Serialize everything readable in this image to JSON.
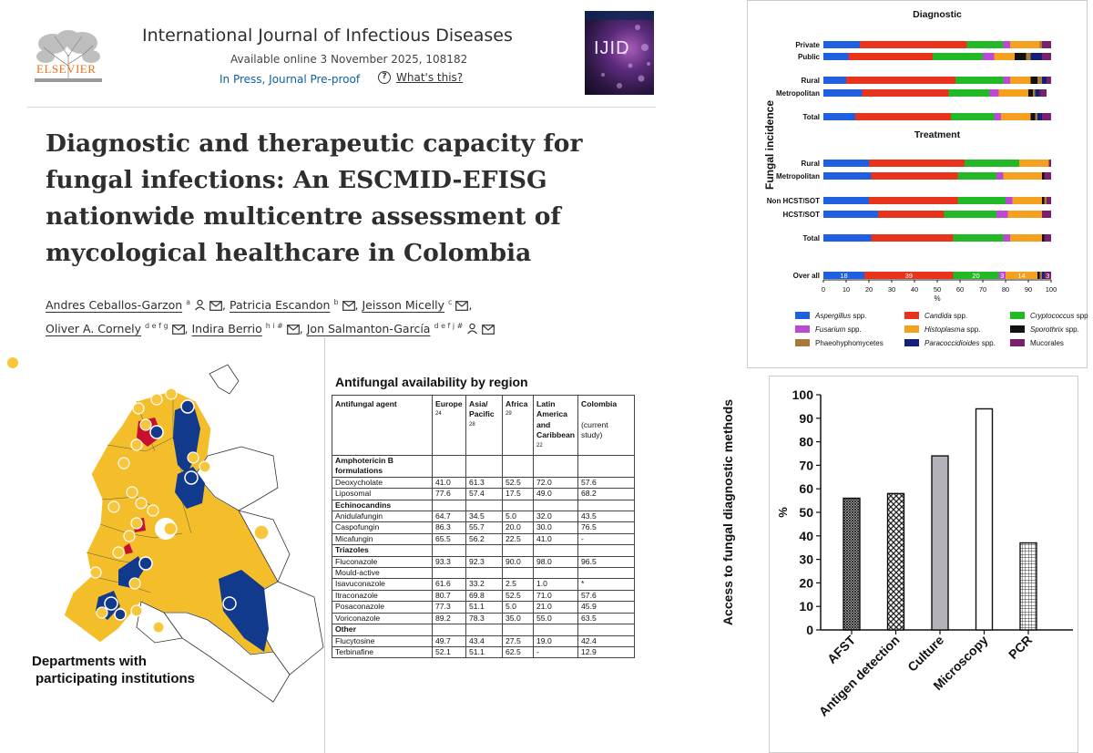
{
  "article": {
    "publisher": "ELSEVIER",
    "journal": "International Journal of Infectious Diseases",
    "available": "Available online 3 November 2025, 108182",
    "status": "In Press, Journal Pre-proof",
    "whats_this": "What's this?",
    "cover_title": "IJID",
    "title": "Diagnostic and therapeutic capacity for fungal infections: An ESCMID-EFISG nationwide multicentre assessment of mycological healthcare in Colombia",
    "authors": [
      {
        "name": "Andres Ceballos-Garzon",
        "aff": "a"
      },
      {
        "name": "Patricia Escandon",
        "aff": "b"
      },
      {
        "name": "Jeisson Micelly",
        "aff": "c"
      },
      {
        "name": "Oliver A. Cornely",
        "aff": "d e f g"
      },
      {
        "name": "Indira Berrio",
        "aff": "h i #"
      },
      {
        "name": "Jon Salmanton-García",
        "aff": "d e f j #"
      }
    ]
  },
  "map": {
    "caption_line1": "Departments with",
    "caption_line2": "participating institutions",
    "colors": {
      "land": "#f3be2a",
      "highlight": "#123a8c",
      "red": "#c8102e",
      "dot": "#f7c63b"
    }
  },
  "table": {
    "title": "Antifungal availability by region",
    "headers": {
      "agent": "Antifungal agent",
      "europe": "Europe",
      "europe_ref": "24",
      "asia": "Asia/ Pacific",
      "asia_ref": "28",
      "africa": "Africa",
      "africa_ref": "29",
      "latam": "Latin America and Caribbean",
      "latam_ref": "22",
      "colombia": "Colombia",
      "colombia_note": "(current study)"
    },
    "rows": [
      {
        "section": "Amphotericin B formulations"
      },
      {
        "agent": "Deoxycholate",
        "vals": [
          "41.0",
          "61.3",
          "52.5",
          "72.0",
          "57.6"
        ]
      },
      {
        "agent": "Liposomal",
        "vals": [
          "77.6",
          "57.4",
          "17.5",
          "49.0",
          "68.2"
        ]
      },
      {
        "section": "Echinocandins"
      },
      {
        "agent": "Anidulafungin",
        "vals": [
          "64.7",
          "34.5",
          "5.0",
          "32.0",
          "43.5"
        ]
      },
      {
        "agent": "Caspofungin",
        "vals": [
          "86.3",
          "55.7",
          "20.0",
          "30.0",
          "76.5"
        ]
      },
      {
        "agent": "Micafungin",
        "vals": [
          "65.5",
          "56.2",
          "22.5",
          "41.0",
          "-"
        ]
      },
      {
        "section": "Triazoles"
      },
      {
        "agent": "Fluconazole",
        "vals": [
          "93.3",
          "92.3",
          "90.0",
          "98.0",
          "96.5"
        ]
      },
      {
        "agent": "Mould-active",
        "vals": [
          "",
          "",
          "",
          "",
          ""
        ]
      },
      {
        "agent": "Isavuconazole",
        "vals": [
          "61.6",
          "33.2",
          "2.5",
          "1.0",
          "*"
        ]
      },
      {
        "agent": "Itraconazole",
        "vals": [
          "80.7",
          "69.8",
          "52.5",
          "71.0",
          "57.6"
        ]
      },
      {
        "agent": "Posaconazole",
        "vals": [
          "77.3",
          "51.1",
          "5.0",
          "21.0",
          "45.9"
        ]
      },
      {
        "agent": "Voriconazole",
        "vals": [
          "89.2",
          "78.3",
          "35.0",
          "55.0",
          "63.5"
        ]
      },
      {
        "section": "Other"
      },
      {
        "agent": "Flucytosine",
        "vals": [
          "49.7",
          "43.4",
          "27.5",
          "19.0",
          "42.4"
        ]
      },
      {
        "agent": "Terbinafine",
        "vals": [
          "52.1",
          "51.1",
          "62.5",
          "-",
          "12.9"
        ]
      }
    ]
  },
  "chart_data": [
    {
      "type": "bar",
      "orientation": "horizontal-stacked",
      "ylabel": "Fungal incidence",
      "xlabel": "%",
      "xlim": [
        0,
        100
      ],
      "xticks": [
        "0",
        "10",
        "20",
        "30",
        "40",
        "50",
        "60",
        "70",
        "80",
        "90",
        "100"
      ],
      "legend_position": "bottom",
      "series": [
        {
          "name": "Aspergillus spp.",
          "color": "#1f5fe0"
        },
        {
          "name": "Candida spp.",
          "color": "#e8341c"
        },
        {
          "name": "Cryptococcus spp.",
          "color": "#22b826"
        },
        {
          "name": "Fusarium spp.",
          "color": "#bb49d6"
        },
        {
          "name": "Histoplasma spp.",
          "color": "#f5a01e"
        },
        {
          "name": "Sporothrix spp.",
          "color": "#111111"
        },
        {
          "name": "Phaeohyphomycetes",
          "color": "#a87a3a"
        },
        {
          "name": "Paracoccidioides spp.",
          "color": "#13207a"
        },
        {
          "name": "Mucorales",
          "color": "#7a1f6e"
        }
      ],
      "groups": [
        {
          "title": "Diagnostic",
          "rows": [
            {
              "label": "Private",
              "values": [
                16,
                47,
                16,
                3,
                13,
                0,
                1,
                0,
                4
              ]
            },
            {
              "label": "Public",
              "values": [
                11,
                37,
                22,
                5,
                9,
                5,
                2,
                5,
                4
              ]
            },
            {
              "label": "Rural",
              "values": [
                10,
                48,
                21,
                3,
                9,
                3,
                2,
                2,
                2
              ]
            },
            {
              "label": "Metropolitan",
              "values": [
                17,
                38,
                18,
                4,
                13,
                2,
                1,
                2,
                3
              ]
            },
            {
              "label": "Total",
              "values": [
                14,
                42,
                19,
                3,
                13,
                2,
                1,
                2,
                4
              ]
            }
          ]
        },
        {
          "title": "Treatment",
          "rows": [
            {
              "label": "Rural",
              "values": [
                20,
                42,
                24,
                0,
                13,
                0,
                0,
                0,
                1
              ]
            },
            {
              "label": "Metropolitan",
              "values": [
                21,
                38,
                17,
                3,
                17,
                1,
                0,
                0,
                3
              ]
            },
            {
              "label": "Non HCST/SOT",
              "values": [
                20,
                39,
                21,
                3,
                13,
                1,
                1,
                0,
                2
              ]
            },
            {
              "label": "HCST/SOT",
              "values": [
                24,
                29,
                23,
                5,
                15,
                0,
                0,
                0,
                4
              ]
            },
            {
              "label": "Total",
              "values": [
                21,
                36,
                22,
                3,
                14,
                1,
                0,
                0,
                3
              ]
            }
          ]
        },
        {
          "title": "",
          "rows": [
            {
              "label": "Over all",
              "values": [
                18,
                39,
                20,
                3,
                14,
                1,
                1,
                1,
                3
              ],
              "data_labels": [
                "18",
                "39",
                "20",
                "3",
                "14",
                "",
                "",
                "",
                "3"
              ]
            }
          ]
        }
      ]
    },
    {
      "type": "bar",
      "ylabel": "Access to fungal diagnostic methods",
      "yunit": "%",
      "ylim": [
        0,
        100
      ],
      "yticks": [
        "0",
        "10",
        "20",
        "30",
        "40",
        "50",
        "60",
        "70",
        "80",
        "90",
        "100"
      ],
      "categories": [
        "AFST",
        "Antigen detection",
        "Culture",
        "Microscopy",
        "PCR"
      ],
      "values": [
        56,
        58,
        74,
        94,
        37
      ],
      "fills": [
        "crosshatch",
        "diamond",
        "gray",
        "white",
        "grid"
      ]
    }
  ]
}
